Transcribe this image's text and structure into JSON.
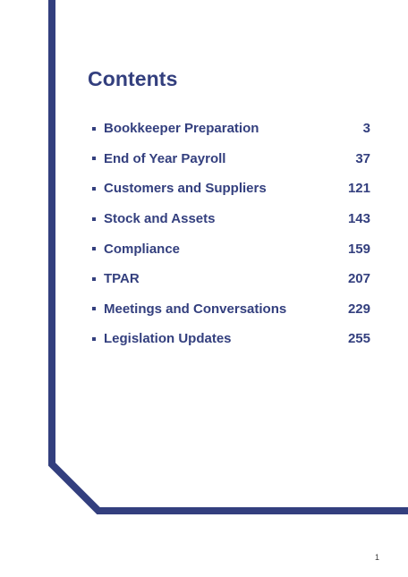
{
  "title": "Contents",
  "accent_color": "#333f7e",
  "toc": [
    {
      "label": "Bookkeeper Preparation",
      "page": "3"
    },
    {
      "label": "End of Year Payroll",
      "page": "37"
    },
    {
      "label": "Customers and Suppliers",
      "page": "121"
    },
    {
      "label": "Stock and Assets",
      "page": "143"
    },
    {
      "label": "Compliance",
      "page": "159"
    },
    {
      "label": "TPAR",
      "page": "207"
    },
    {
      "label": "Meetings and Conversations",
      "page": "229"
    },
    {
      "label": "Legislation Updates",
      "page": "255"
    }
  ],
  "footer": {
    "page_number": "1"
  }
}
